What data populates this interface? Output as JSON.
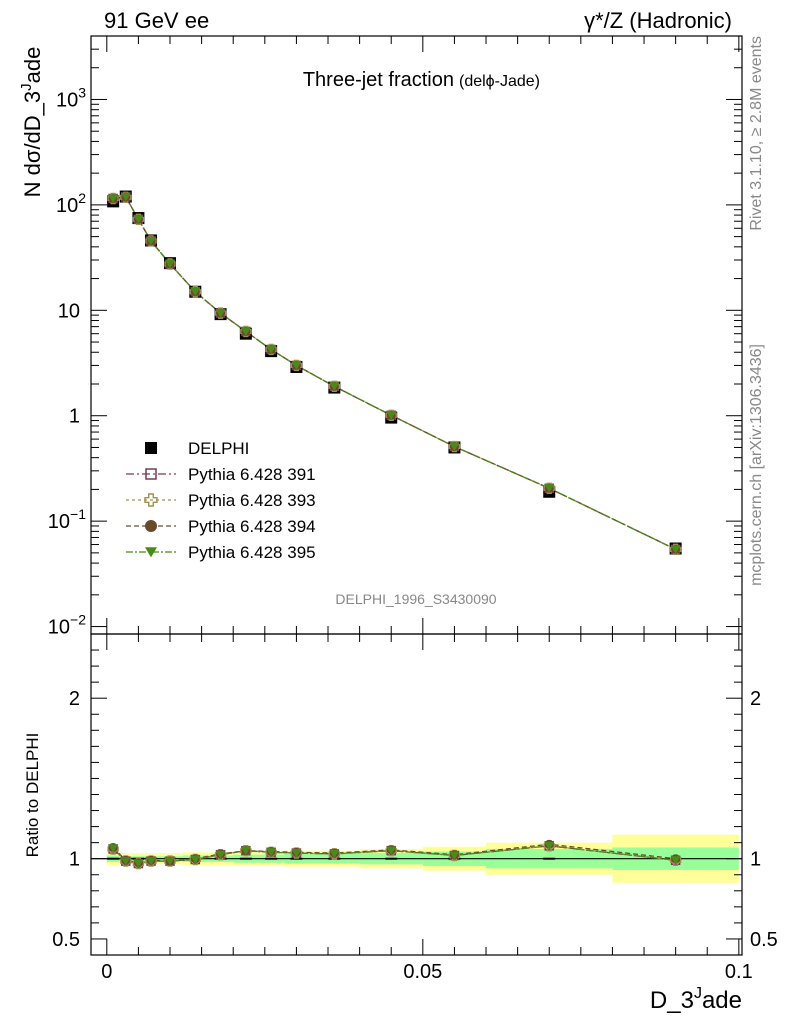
{
  "header": {
    "left": "91 GeV ee",
    "right": "γ*/Z (Hadronic)"
  },
  "side": {
    "rivet": "Rivet 3.1.10, ≥ 2.8M events",
    "mcplots": "mcplots.cern.ch [arXiv:1306.3436]"
  },
  "chart_data": [
    {
      "type": "scatter",
      "panel": "main",
      "title": "Three-jet fraction",
      "subtitle": "(delϕ-Jade)",
      "ylabel_main": "N dσ/dD_3",
      "ylabel_sup": "J",
      "ylabel_tail": "ade",
      "xlabel_main": "D_3",
      "xlabel_sup": "J",
      "xlabel_tail": "ade",
      "watermark": "DELPHI_1996_S3430090",
      "yscale": "log",
      "ylim": [
        0.0085,
        4000
      ],
      "xlim": [
        -0.0025,
        0.1005
      ],
      "yticks": [
        {
          "v": 0.01,
          "base": "10",
          "exp": "−2"
        },
        {
          "v": 0.1,
          "base": "10",
          "exp": "−1"
        },
        {
          "v": 1,
          "base": "1",
          "exp": ""
        },
        {
          "v": 10,
          "base": "10",
          "exp": ""
        },
        {
          "v": 100,
          "base": "10",
          "exp": "2"
        },
        {
          "v": 1000,
          "base": "10",
          "exp": "3"
        }
      ],
      "x": [
        0.001,
        0.003,
        0.005,
        0.007,
        0.01,
        0.014,
        0.018,
        0.022,
        0.026,
        0.03,
        0.036,
        0.045,
        0.055,
        0.07,
        0.09
      ],
      "series": [
        {
          "name": "DELPHI",
          "marker": "square-filled",
          "color": "#000000",
          "values": [
            108,
            120,
            75,
            46,
            28,
            15,
            9.2,
            6.0,
            4.1,
            2.9,
            1.85,
            0.96,
            0.5,
            0.19,
            0.055
          ]
        },
        {
          "name": "Pythia 6.428 391",
          "marker": "square-open",
          "color": "#7a3a5a",
          "dash": "8,3,2,3",
          "values": [
            115,
            119,
            73,
            45.5,
            27.5,
            15,
            9.4,
            6.3,
            4.25,
            3.0,
            1.9,
            1.01,
            0.51,
            0.205,
            0.054
          ]
        },
        {
          "name": "Pythia 6.428 393",
          "marker": "cross-open",
          "color": "#a09050",
          "dash": "3,3",
          "values": [
            115,
            118,
            73,
            45.5,
            27.5,
            15,
            9.4,
            6.3,
            4.25,
            3.0,
            1.9,
            1.01,
            0.51,
            0.205,
            0.054
          ]
        },
        {
          "name": "Pythia 6.428 394",
          "marker": "circle-filled",
          "color": "#6b4a2b",
          "dash": "5,3",
          "values": [
            115,
            119,
            73,
            45.5,
            27.5,
            15,
            9.4,
            6.3,
            4.25,
            3.0,
            1.9,
            1.01,
            0.51,
            0.205,
            0.054
          ]
        },
        {
          "name": "Pythia 6.428 395",
          "marker": "triangle-down-filled",
          "color": "#4a8a1a",
          "dash": "7,2,2,2",
          "values": [
            115,
            119,
            73,
            45.5,
            27.5,
            15,
            9.4,
            6.3,
            4.25,
            3.0,
            1.9,
            1.01,
            0.51,
            0.205,
            0.054
          ]
        }
      ],
      "legend_position": "middle-left"
    },
    {
      "type": "scatter",
      "panel": "ratio",
      "ylabel": "Ratio to DELPHI",
      "ylim": [
        0.4,
        2.4
      ],
      "xticks": [
        {
          "v": 0,
          "label": "0"
        },
        {
          "v": 0.05,
          "label": "0.05"
        },
        {
          "v": 0.1,
          "label": "0.1"
        }
      ],
      "yticks": [
        {
          "v": 0.5,
          "label": "0.5"
        },
        {
          "v": 1,
          "label": "1"
        },
        {
          "v": 2,
          "label": "2"
        }
      ],
      "bands": [
        {
          "x0": 0.0,
          "x1": 0.002,
          "stat": 0.02,
          "total": 0.04
        },
        {
          "x0": 0.002,
          "x1": 0.004,
          "stat": 0.015,
          "total": 0.035
        },
        {
          "x0": 0.004,
          "x1": 0.006,
          "stat": 0.015,
          "total": 0.035
        },
        {
          "x0": 0.006,
          "x1": 0.008,
          "stat": 0.015,
          "total": 0.035
        },
        {
          "x0": 0.008,
          "x1": 0.012,
          "stat": 0.015,
          "total": 0.035
        },
        {
          "x0": 0.012,
          "x1": 0.016,
          "stat": 0.02,
          "total": 0.04
        },
        {
          "x0": 0.016,
          "x1": 0.02,
          "stat": 0.02,
          "total": 0.04
        },
        {
          "x0": 0.02,
          "x1": 0.024,
          "stat": 0.025,
          "total": 0.045
        },
        {
          "x0": 0.024,
          "x1": 0.028,
          "stat": 0.025,
          "total": 0.045
        },
        {
          "x0": 0.028,
          "x1": 0.032,
          "stat": 0.03,
          "total": 0.05
        },
        {
          "x0": 0.032,
          "x1": 0.04,
          "stat": 0.03,
          "total": 0.05
        },
        {
          "x0": 0.04,
          "x1": 0.05,
          "stat": 0.035,
          "total": 0.06
        },
        {
          "x0": 0.05,
          "x1": 0.06,
          "stat": 0.045,
          "total": 0.075
        },
        {
          "x0": 0.06,
          "x1": 0.08,
          "stat": 0.06,
          "total": 0.1
        },
        {
          "x0": 0.08,
          "x1": 0.1,
          "stat": 0.07,
          "total": 0.15
        }
      ],
      "x": [
        0.001,
        0.003,
        0.005,
        0.007,
        0.01,
        0.014,
        0.018,
        0.022,
        0.026,
        0.03,
        0.036,
        0.045,
        0.055,
        0.07,
        0.09
      ],
      "series": [
        {
          "name": "Pythia 6.428 391",
          "values": [
            1.06,
            0.985,
            0.97,
            0.985,
            0.985,
            0.995,
            1.025,
            1.05,
            1.04,
            1.035,
            1.03,
            1.05,
            1.02,
            1.08,
            0.99
          ]
        },
        {
          "name": "Pythia 6.428 393",
          "values": [
            1.06,
            0.985,
            0.97,
            0.985,
            0.985,
            0.995,
            1.025,
            1.05,
            1.04,
            1.035,
            1.03,
            1.05,
            1.02,
            1.08,
            0.99
          ]
        },
        {
          "name": "Pythia 6.428 394",
          "values": [
            1.07,
            0.99,
            0.975,
            0.99,
            0.985,
            1.0,
            1.03,
            1.05,
            1.045,
            1.04,
            1.035,
            1.055,
            1.025,
            1.09,
            1.0
          ]
        },
        {
          "name": "Pythia 6.428 395",
          "values": [
            1.065,
            0.985,
            0.97,
            0.985,
            0.985,
            0.995,
            1.025,
            1.05,
            1.04,
            1.035,
            1.03,
            1.05,
            1.02,
            1.08,
            0.99
          ]
        }
      ]
    }
  ]
}
